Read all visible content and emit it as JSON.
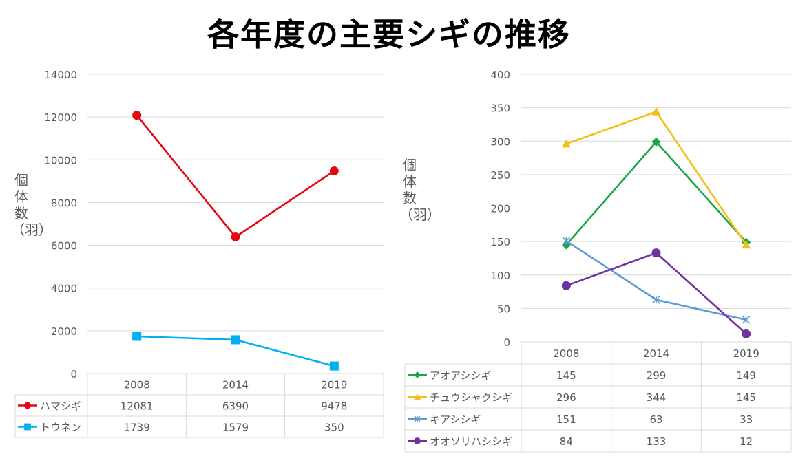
{
  "title": "各年度の主要シギの推移",
  "colors": {
    "grid": "#d9d9d9",
    "axis_text": "#595959",
    "hamashigi": "#e30613",
    "tounen": "#00b0f0",
    "aoashishigi": "#1aa64a",
    "chuushakushigi": "#f5be12",
    "kiashishigi": "#5b9bd5",
    "ooshorihashishigi": "#7030a0"
  },
  "chart_data": [
    {
      "type": "line",
      "title": "",
      "xlabel": "",
      "ylabel": "個体数（羽）",
      "categories": [
        "2008",
        "2014",
        "2019"
      ],
      "ylim": [
        0,
        14000
      ],
      "yticks": [
        "0",
        "2000",
        "4000",
        "6000",
        "8000",
        "10000",
        "12000",
        "14000"
      ],
      "grid": true,
      "legend": "data-table",
      "series": [
        {
          "name": "ハマシギ",
          "values": [
            12081,
            6390,
            9478
          ],
          "labels": [
            "12081",
            "6390",
            "9478"
          ],
          "marker": "circle",
          "color": "#e30613"
        },
        {
          "name": "トウネン",
          "values": [
            1739,
            1579,
            350
          ],
          "labels": [
            "1739",
            "1579",
            "350"
          ],
          "marker": "square",
          "color": "#00b0f0"
        }
      ]
    },
    {
      "type": "line",
      "title": "",
      "xlabel": "",
      "ylabel": "個体数（羽）",
      "categories": [
        "2008",
        "2014",
        "2019"
      ],
      "ylim": [
        0,
        400
      ],
      "yticks": [
        "0",
        "50",
        "100",
        "150",
        "200",
        "250",
        "300",
        "350",
        "400"
      ],
      "grid": true,
      "legend": "data-table",
      "series": [
        {
          "name": "アオアシシギ",
          "values": [
            145,
            299,
            149
          ],
          "labels": [
            "145",
            "299",
            "149"
          ],
          "marker": "diamond",
          "color": "#1aa64a"
        },
        {
          "name": "チュウシャクシギ",
          "values": [
            296,
            344,
            145
          ],
          "labels": [
            "296",
            "344",
            "145"
          ],
          "marker": "triangle",
          "color": "#f5be12"
        },
        {
          "name": "キアシシギ",
          "values": [
            151,
            63,
            33
          ],
          "labels": [
            "151",
            "63",
            "33"
          ],
          "marker": "star",
          "color": "#5b9bd5"
        },
        {
          "name": "オオソリハシシギ",
          "values": [
            84,
            133,
            12
          ],
          "labels": [
            "84",
            "133",
            "12"
          ],
          "marker": "circle",
          "color": "#7030a0"
        }
      ]
    }
  ]
}
